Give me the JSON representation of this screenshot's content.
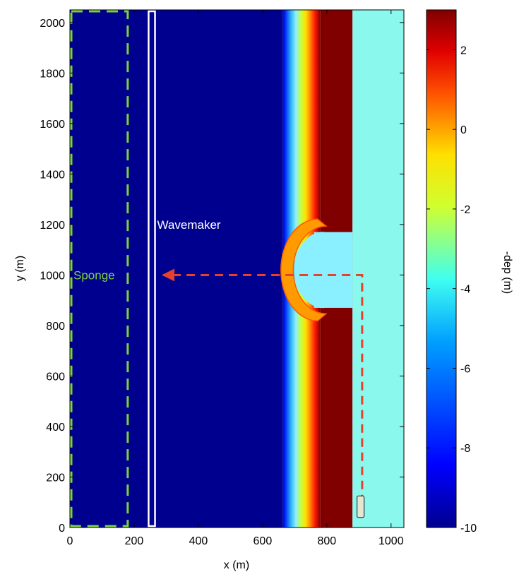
{
  "chart_data": {
    "type": "heatmap",
    "title": "",
    "xlabel": "x (m)",
    "ylabel": "y (m)",
    "xlim": [
      0,
      1040
    ],
    "ylim": [
      0,
      2050
    ],
    "x_ticks": [
      0,
      200,
      400,
      600,
      800,
      1000
    ],
    "y_ticks": [
      0,
      200,
      400,
      600,
      800,
      1000,
      1200,
      1400,
      1600,
      1800,
      2000
    ],
    "x_tick_labels": [
      "0",
      "200",
      "400",
      "600",
      "800",
      "1000"
    ],
    "y_tick_labels": [
      "0",
      "200",
      "400",
      "600",
      "800",
      "1000",
      "1200",
      "1400",
      "1600",
      "1800",
      "2000"
    ],
    "colorbar": {
      "label": "-dep (m)",
      "range": [
        -10,
        3
      ],
      "colormap": "jet",
      "ticks": [
        -10,
        -8,
        -6,
        -4,
        -2,
        0,
        2
      ],
      "tick_labels": [
        "-10",
        "-8",
        "-6",
        "-4",
        "-2",
        "0",
        "2"
      ]
    },
    "bathymetry": {
      "deep_value": -10,
      "slope_start_x": 660,
      "slope_end_x": 780,
      "land_value": 3,
      "land_x_range": [
        780,
        880
      ],
      "lagoon_value": -5,
      "lagoon_x_range": [
        880,
        1040
      ],
      "inlet_y_range": [
        870,
        1170
      ],
      "inlet_x_range": [
        760,
        880
      ],
      "shoal_center_y": 1020,
      "shoal_apex_x": 635
    },
    "sponge": {
      "label": "Sponge",
      "x_range": [
        0,
        180
      ],
      "y_range": [
        0,
        2050
      ],
      "color": "#7dd23c"
    },
    "wavemaker": {
      "label": "Wavemaker",
      "x_range": [
        245,
        265
      ],
      "color": "#ffffff"
    },
    "transect": {
      "color": "#e8402a",
      "points": [
        [
          910,
          40
        ],
        [
          910,
          1000
        ],
        [
          290,
          1000
        ]
      ],
      "arrow_end": [
        290,
        1000
      ]
    },
    "gauge": {
      "x": 905,
      "y_range": [
        40,
        125
      ],
      "color": "#e6e6d2"
    }
  }
}
